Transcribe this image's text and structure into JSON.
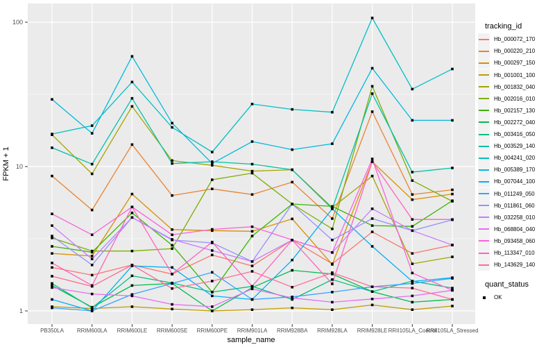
{
  "chart_data": {
    "type": "line",
    "title": "",
    "xlabel": "sample_name",
    "ylabel": "FPKM + 1",
    "y_scale": "log10",
    "ylim": [
      0.81,
      135
    ],
    "y_major_ticks": [
      1,
      10,
      100
    ],
    "y_minor_gridlines": [
      3.162,
      31.62
    ],
    "grid": "white major+minor on gray panel",
    "legend_position": "right",
    "panel_color": "#EBEBEB",
    "marker": {
      "shape": "small-black-square",
      "meaning": "quant_status OK"
    },
    "categories": [
      "PB350LA",
      "RRIM600LA",
      "RRIM600LE",
      "RRIM600SE",
      "RRIM600PE",
      "RRIM901LA",
      "RRIM928BA",
      "RRIM928LA",
      "RRIM928LE",
      "RRII105LA_Control",
      "RRII105LA_Stressed"
    ],
    "series": [
      {
        "name": "Hb_000072_170",
        "color": "#F8766D",
        "values": [
          2.0,
          1.77,
          2.08,
          1.8,
          2.44,
          2.05,
          3.1,
          2.12,
          3.53,
          2.5,
          2.86
        ]
      },
      {
        "name": "Hb_000220_210",
        "color": "#EA8331",
        "values": [
          8.6,
          5.0,
          14.2,
          6.3,
          7.0,
          6.4,
          7.8,
          4.36,
          24.0,
          6.4,
          6.9
        ]
      },
      {
        "name": "Hb_000297_150",
        "color": "#D89000",
        "values": [
          2.5,
          2.4,
          6.45,
          3.66,
          3.6,
          3.56,
          4.34,
          2.1,
          10.8,
          5.9,
          6.45
        ]
      },
      {
        "name": "Hb_001001_100",
        "color": "#C09B00",
        "values": [
          1.07,
          1.04,
          1.07,
          1.03,
          1.0,
          1.02,
          1.05,
          1.02,
          1.1,
          1.02,
          1.08
        ]
      },
      {
        "name": "Hb_001832_040",
        "color": "#A3A500",
        "values": [
          16.6,
          8.9,
          26.1,
          11.0,
          10.2,
          9.3,
          9.5,
          5.2,
          8.6,
          2.12,
          2.37
        ]
      },
      {
        "name": "Hb_002016_010",
        "color": "#7CAE00",
        "values": [
          3.2,
          2.6,
          2.6,
          2.7,
          8.1,
          9.0,
          5.5,
          3.7,
          36.0,
          8.0,
          5.75
        ]
      },
      {
        "name": "Hb_002157_130",
        "color": "#39B600",
        "values": [
          2.8,
          2.55,
          4.78,
          2.85,
          1.35,
          3.3,
          5.5,
          5.3,
          3.9,
          3.85,
          5.8
        ]
      },
      {
        "name": "Hb_002272_040",
        "color": "#00BB4E",
        "values": [
          1.5,
          1.06,
          1.5,
          1.55,
          1.0,
          1.45,
          1.91,
          1.8,
          1.36,
          1.15,
          1.2
        ]
      },
      {
        "name": "Hb_003416_050",
        "color": "#00BF7D",
        "values": [
          1.55,
          1.05,
          1.75,
          1.56,
          1.35,
          1.48,
          1.2,
          1.65,
          1.36,
          1.61,
          1.44
        ]
      },
      {
        "name": "Hb_003529_140",
        "color": "#00C1A7",
        "values": [
          13.5,
          10.4,
          29.7,
          10.5,
          10.8,
          10.4,
          9.5,
          5.1,
          32.0,
          9.15,
          9.78
        ]
      },
      {
        "name": "Hb_004241_020",
        "color": "#00BFC4",
        "values": [
          16.8,
          19.2,
          38.5,
          18.7,
          12.6,
          27.1,
          24.9,
          23.8,
          107.0,
          34.4,
          47.4
        ]
      },
      {
        "name": "Hb_005389_170",
        "color": "#00BADE",
        "values": [
          29.2,
          17.0,
          58.0,
          20.0,
          10.5,
          14.9,
          13.1,
          14.4,
          48.0,
          20.9,
          20.9
        ]
      },
      {
        "name": "Hb_007044_100",
        "color": "#00B0F6",
        "values": [
          1.2,
          1.0,
          2.05,
          2.0,
          1.27,
          1.2,
          2.25,
          5.1,
          2.8,
          1.6,
          1.7
        ]
      },
      {
        "name": "Hb_011249_050",
        "color": "#35A2FF",
        "values": [
          1.05,
          1.0,
          1.3,
          1.55,
          1.85,
          1.2,
          1.25,
          1.35,
          1.47,
          1.55,
          1.68
        ]
      },
      {
        "name": "Hb_011861_060",
        "color": "#9590FF",
        "values": [
          3.3,
          2.08,
          4.44,
          3.1,
          2.96,
          2.2,
          5.5,
          3.1,
          4.36,
          3.6,
          4.28
        ]
      },
      {
        "name": "Hb_032258_010",
        "color": "#C77CFF",
        "values": [
          3.9,
          2.29,
          4.44,
          3.13,
          2.62,
          2.2,
          3.1,
          2.54,
          5.1,
          3.6,
          2.86
        ]
      },
      {
        "name": "Hb_068804_040",
        "color": "#E76BF3",
        "values": [
          1.45,
          1.31,
          1.27,
          1.11,
          1.07,
          1.42,
          1.23,
          1.15,
          1.21,
          1.27,
          1.39
        ]
      },
      {
        "name": "Hb_093458_060",
        "color": "#FA62DB",
        "values": [
          4.7,
          3.37,
          5.25,
          3.37,
          3.67,
          3.83,
          3.1,
          2.54,
          11.3,
          1.83,
          1.39
        ]
      },
      {
        "name": "Hb_113347_010",
        "color": "#FF62BC",
        "values": [
          2.15,
          1.5,
          5.25,
          1.8,
          3.0,
          1.48,
          3.1,
          1.54,
          10.8,
          4.3,
          4.3
        ]
      },
      {
        "name": "Hb_143629_140",
        "color": "#FF6A98",
        "values": [
          1.74,
          1.48,
          2.08,
          1.43,
          1.61,
          1.88,
          1.46,
          1.84,
          1.47,
          1.44,
          1.2
        ]
      }
    ]
  },
  "legend": {
    "tracking_title": "tracking_id",
    "quant_title": "quant_status",
    "quant_items": [
      {
        "label": "OK"
      }
    ]
  }
}
